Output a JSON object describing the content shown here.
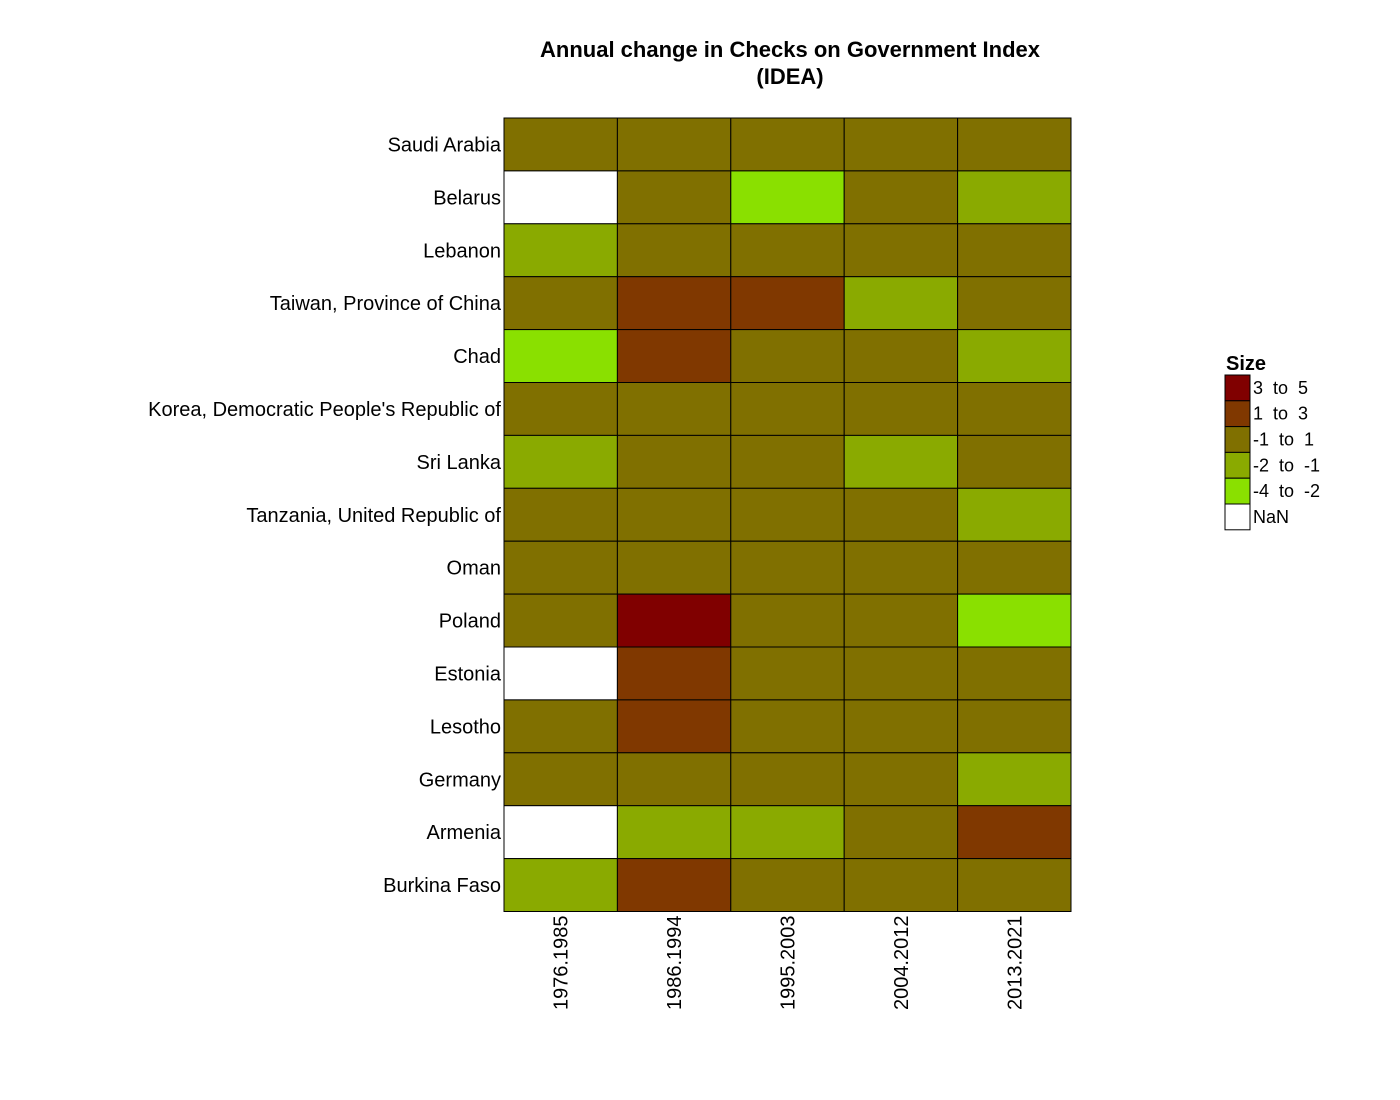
{
  "chart_data": {
    "type": "heatmap",
    "title": [
      "Annual change in Checks on Government Index",
      "(IDEA)"
    ],
    "columns": [
      "1976.1985",
      "1986.1994",
      "1995.2003",
      "2004.2012",
      "2013.2021"
    ],
    "rows": [
      "Saudi Arabia",
      "Belarus",
      "Lebanon",
      "Taiwan, Province of China",
      "Chad",
      "Korea, Democratic People's Republic of",
      "Sri Lanka",
      "Tanzania, United Republic of",
      "Oman",
      "Poland",
      "Estonia",
      "Lesotho",
      "Germany",
      "Armenia",
      "Burkina Faso"
    ],
    "cells": [
      [
        "-1  to  1",
        "-1  to  1",
        "-1  to  1",
        "-1  to  1",
        "-1  to  1"
      ],
      [
        "NaN",
        "-1  to  1",
        "-4  to  -2",
        "-1  to  1",
        "-2  to  -1"
      ],
      [
        "-2  to  -1",
        "-1  to  1",
        "-1  to  1",
        "-1  to  1",
        "-1  to  1"
      ],
      [
        "-1  to  1",
        "1  to  3",
        "1  to  3",
        "-2  to  -1",
        "-1  to  1"
      ],
      [
        "-4  to  -2",
        "1  to  3",
        "-1  to  1",
        "-1  to  1",
        "-2  to  -1"
      ],
      [
        "-1  to  1",
        "-1  to  1",
        "-1  to  1",
        "-1  to  1",
        "-1  to  1"
      ],
      [
        "-2  to  -1",
        "-1  to  1",
        "-1  to  1",
        "-2  to  -1",
        "-1  to  1"
      ],
      [
        "-1  to  1",
        "-1  to  1",
        "-1  to  1",
        "-1  to  1",
        "-2  to  -1"
      ],
      [
        "-1  to  1",
        "-1  to  1",
        "-1  to  1",
        "-1  to  1",
        "-1  to  1"
      ],
      [
        "-1  to  1",
        "3  to  5",
        "-1  to  1",
        "-1  to  1",
        "-4  to  -2"
      ],
      [
        "NaN",
        "1  to  3",
        "-1  to  1",
        "-1  to  1",
        "-1  to  1"
      ],
      [
        "-1  to  1",
        "1  to  3",
        "-1  to  1",
        "-1  to  1",
        "-1  to  1"
      ],
      [
        "-1  to  1",
        "-1  to  1",
        "-1  to  1",
        "-1  to  1",
        "-2  to  -1"
      ],
      [
        "NaN",
        "-2  to  -1",
        "-2  to  -1",
        "-1  to  1",
        "1  to  3"
      ],
      [
        "-2  to  -1",
        "1  to  3",
        "-1  to  1",
        "-1  to  1",
        "-1  to  1"
      ]
    ],
    "legend": {
      "title": "Size",
      "position": "right",
      "items": [
        {
          "label": "3  to  5",
          "color": "#800000"
        },
        {
          "label": "1  to  3",
          "color": "#803800"
        },
        {
          "label": "-1  to  1",
          "color": "#807000"
        },
        {
          "label": "-2  to  -1",
          "color": "#8AAA00"
        },
        {
          "label": "-4  to  -2",
          "color": "#8AE000"
        },
        {
          "label": "NaN",
          "color": "#FFFFFF"
        }
      ]
    },
    "grid": true
  }
}
